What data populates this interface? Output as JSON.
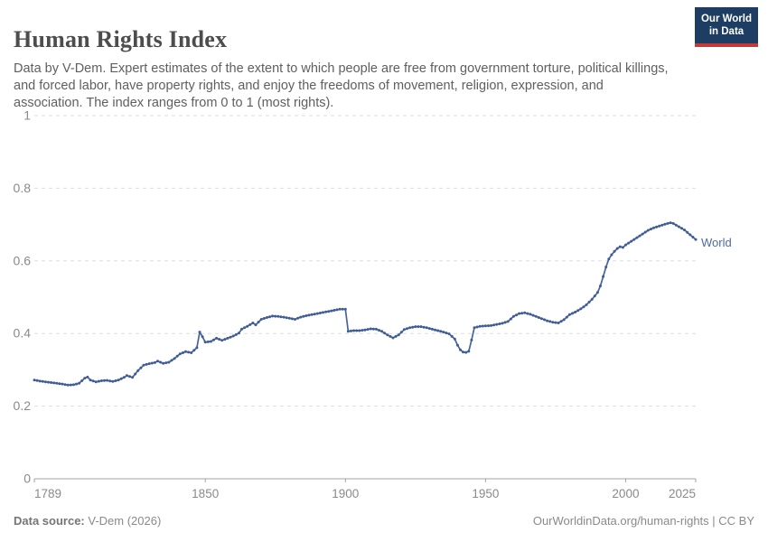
{
  "header": {
    "title": "Human Rights Index",
    "subtitle": "Data by V-Dem. Expert estimates of the extent to which people are free from government torture, political killings, and forced labor, have property rights, and enjoy the freedoms of movement, religion, expression, and association. The index ranges from 0 to 1 (most rights).",
    "logo_line1": "Our World",
    "logo_line2": "in Data",
    "logo_bg_color": "#1d3d63",
    "logo_accent_color": "#c53a38"
  },
  "footer": {
    "data_source_label": "Data source:",
    "data_source_value": " V-Dem (2026)",
    "right_text": "OurWorldinData.org/human-rights | CC BY"
  },
  "chart_data": {
    "type": "line",
    "title": "Human Rights Index",
    "entity": "World",
    "series_label": "World",
    "xlabel": "",
    "ylabel": "",
    "x_ticks": [
      1789,
      1850,
      1900,
      1950,
      2000,
      2025
    ],
    "y_ticks": [
      0,
      0.2,
      0.4,
      0.6,
      0.8,
      1
    ],
    "y_tick_labels": [
      "0",
      "0.2",
      "0.4",
      "0.6",
      "0.8",
      "1"
    ],
    "xlim": [
      1789,
      2025
    ],
    "ylim": [
      0,
      1
    ],
    "grid": "dashed-horizontal",
    "legend_position": "end-of-line",
    "line_color": "#45639d",
    "marker_color": "#3f5c96",
    "grid_color": "#dedede",
    "axis_color": "#a3a3a3",
    "tick_label_color": "#8a8a8a",
    "points": [
      [
        1789,
        0.272
      ],
      [
        1791,
        0.269
      ],
      [
        1793,
        0.267
      ],
      [
        1795,
        0.265
      ],
      [
        1797,
        0.263
      ],
      [
        1799,
        0.261
      ],
      [
        1801,
        0.258
      ],
      [
        1803,
        0.259
      ],
      [
        1805,
        0.263
      ],
      [
        1807,
        0.277
      ],
      [
        1808,
        0.28
      ],
      [
        1809,
        0.272
      ],
      [
        1811,
        0.267
      ],
      [
        1813,
        0.27
      ],
      [
        1815,
        0.271
      ],
      [
        1817,
        0.268
      ],
      [
        1819,
        0.272
      ],
      [
        1821,
        0.279
      ],
      [
        1822,
        0.284
      ],
      [
        1824,
        0.279
      ],
      [
        1826,
        0.298
      ],
      [
        1828,
        0.313
      ],
      [
        1830,
        0.317
      ],
      [
        1832,
        0.32
      ],
      [
        1833,
        0.324
      ],
      [
        1835,
        0.318
      ],
      [
        1837,
        0.321
      ],
      [
        1839,
        0.331
      ],
      [
        1841,
        0.344
      ],
      [
        1843,
        0.35
      ],
      [
        1845,
        0.347
      ],
      [
        1847,
        0.361
      ],
      [
        1848,
        0.404
      ],
      [
        1849,
        0.391
      ],
      [
        1850,
        0.376
      ],
      [
        1852,
        0.378
      ],
      [
        1854,
        0.387
      ],
      [
        1856,
        0.381
      ],
      [
        1858,
        0.387
      ],
      [
        1860,
        0.393
      ],
      [
        1862,
        0.401
      ],
      [
        1863,
        0.412
      ],
      [
        1865,
        0.42
      ],
      [
        1867,
        0.429
      ],
      [
        1868,
        0.424
      ],
      [
        1870,
        0.439
      ],
      [
        1872,
        0.444
      ],
      [
        1874,
        0.448
      ],
      [
        1876,
        0.447
      ],
      [
        1878,
        0.445
      ],
      [
        1880,
        0.442
      ],
      [
        1882,
        0.439
      ],
      [
        1884,
        0.445
      ],
      [
        1886,
        0.449
      ],
      [
        1888,
        0.452
      ],
      [
        1890,
        0.455
      ],
      [
        1892,
        0.458
      ],
      [
        1894,
        0.461
      ],
      [
        1896,
        0.464
      ],
      [
        1898,
        0.467
      ],
      [
        1900,
        0.467
      ],
      [
        1901,
        0.406
      ],
      [
        1903,
        0.408
      ],
      [
        1905,
        0.408
      ],
      [
        1907,
        0.41
      ],
      [
        1909,
        0.413
      ],
      [
        1911,
        0.412
      ],
      [
        1913,
        0.406
      ],
      [
        1915,
        0.396
      ],
      [
        1917,
        0.388
      ],
      [
        1919,
        0.396
      ],
      [
        1921,
        0.411
      ],
      [
        1923,
        0.416
      ],
      [
        1925,
        0.419
      ],
      [
        1927,
        0.419
      ],
      [
        1929,
        0.416
      ],
      [
        1931,
        0.412
      ],
      [
        1933,
        0.408
      ],
      [
        1935,
        0.404
      ],
      [
        1937,
        0.399
      ],
      [
        1939,
        0.385
      ],
      [
        1940,
        0.368
      ],
      [
        1941,
        0.355
      ],
      [
        1942,
        0.349
      ],
      [
        1943,
        0.348
      ],
      [
        1944,
        0.351
      ],
      [
        1945,
        0.382
      ],
      [
        1946,
        0.416
      ],
      [
        1948,
        0.42
      ],
      [
        1950,
        0.421
      ],
      [
        1952,
        0.422
      ],
      [
        1954,
        0.425
      ],
      [
        1956,
        0.428
      ],
      [
        1958,
        0.433
      ],
      [
        1960,
        0.447
      ],
      [
        1962,
        0.455
      ],
      [
        1964,
        0.457
      ],
      [
        1966,
        0.453
      ],
      [
        1968,
        0.447
      ],
      [
        1970,
        0.441
      ],
      [
        1972,
        0.435
      ],
      [
        1974,
        0.431
      ],
      [
        1976,
        0.429
      ],
      [
        1978,
        0.438
      ],
      [
        1980,
        0.452
      ],
      [
        1982,
        0.459
      ],
      [
        1984,
        0.468
      ],
      [
        1986,
        0.479
      ],
      [
        1988,
        0.494
      ],
      [
        1990,
        0.513
      ],
      [
        1991,
        0.531
      ],
      [
        1992,
        0.557
      ],
      [
        1993,
        0.583
      ],
      [
        1994,
        0.605
      ],
      [
        1995,
        0.617
      ],
      [
        1996,
        0.626
      ],
      [
        1997,
        0.634
      ],
      [
        1998,
        0.639
      ],
      [
        1999,
        0.637
      ],
      [
        2000,
        0.644
      ],
      [
        2002,
        0.654
      ],
      [
        2004,
        0.664
      ],
      [
        2006,
        0.674
      ],
      [
        2008,
        0.684
      ],
      [
        2010,
        0.691
      ],
      [
        2012,
        0.696
      ],
      [
        2014,
        0.701
      ],
      [
        2016,
        0.705
      ],
      [
        2017,
        0.703
      ],
      [
        2019,
        0.694
      ],
      [
        2021,
        0.685
      ],
      [
        2023,
        0.672
      ],
      [
        2025,
        0.659
      ]
    ]
  }
}
